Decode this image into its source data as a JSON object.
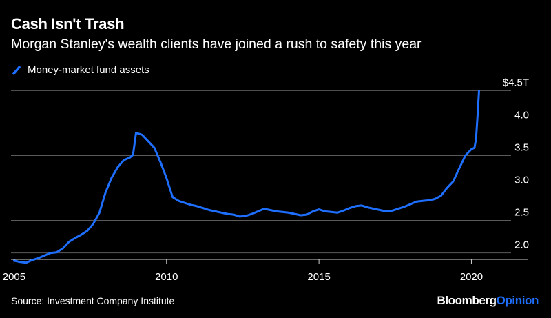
{
  "title": "Cash Isn't Trash",
  "subtitle": "Morgan Stanley's wealth clients have joined a rush to safety this year",
  "legend_label": "Money-market fund assets",
  "source": "Source: Investment Company Institute",
  "brand": {
    "part1": "Bloomberg",
    "part2": "Opinion"
  },
  "colors": {
    "series": "#1f6fff",
    "background": "#000000",
    "grid": "#5a5a5a",
    "text": "#ffffff"
  },
  "chart_data": {
    "type": "line",
    "title": "Cash Isn't Trash",
    "subtitle": "Morgan Stanley's wealth clients have joined a rush to safety this year",
    "xlabel": "",
    "ylabel": "",
    "x_ticks": [
      "2005",
      "2010",
      "2015",
      "2020"
    ],
    "y_ticks": [
      "2.0",
      "2.5",
      "3.0",
      "3.5",
      "4.0",
      "$4.5T"
    ],
    "y_tick_values": [
      2.0,
      2.5,
      3.0,
      3.5,
      4.0,
      4.5
    ],
    "xlim": [
      2004.9,
      2021.3
    ],
    "ylim": [
      1.9,
      4.6
    ],
    "grid": true,
    "legend_position": "top-left",
    "series": [
      {
        "name": "Money-market fund assets",
        "x": [
          2005.0,
          2005.2,
          2005.4,
          2005.6,
          2005.8,
          2006.0,
          2006.2,
          2006.4,
          2006.6,
          2006.8,
          2007.0,
          2007.2,
          2007.4,
          2007.6,
          2007.8,
          2008.0,
          2008.2,
          2008.4,
          2008.6,
          2008.8,
          2008.9,
          2009.0,
          2009.2,
          2009.4,
          2009.6,
          2009.8,
          2010.0,
          2010.2,
          2010.4,
          2010.6,
          2010.8,
          2011.0,
          2011.2,
          2011.4,
          2011.6,
          2011.8,
          2012.0,
          2012.2,
          2012.4,
          2012.6,
          2012.8,
          2013.0,
          2013.2,
          2013.4,
          2013.6,
          2013.8,
          2014.0,
          2014.2,
          2014.4,
          2014.6,
          2014.8,
          2015.0,
          2015.2,
          2015.4,
          2015.6,
          2015.8,
          2016.0,
          2016.2,
          2016.4,
          2016.6,
          2016.8,
          2017.0,
          2017.2,
          2017.4,
          2017.6,
          2017.8,
          2018.0,
          2018.2,
          2018.4,
          2018.6,
          2018.8,
          2019.0,
          2019.2,
          2019.4,
          2019.6,
          2019.8,
          2020.0,
          2020.1,
          2020.15,
          2020.2,
          2020.25
        ],
        "values": [
          1.88,
          1.86,
          1.85,
          1.89,
          1.92,
          1.96,
          2.0,
          2.01,
          2.07,
          2.17,
          2.23,
          2.28,
          2.34,
          2.45,
          2.62,
          2.93,
          3.16,
          3.32,
          3.43,
          3.47,
          3.51,
          3.85,
          3.82,
          3.72,
          3.62,
          3.4,
          3.15,
          2.86,
          2.8,
          2.77,
          2.74,
          2.72,
          2.69,
          2.66,
          2.64,
          2.62,
          2.6,
          2.59,
          2.56,
          2.57,
          2.6,
          2.64,
          2.68,
          2.66,
          2.64,
          2.63,
          2.62,
          2.6,
          2.58,
          2.59,
          2.64,
          2.67,
          2.64,
          2.63,
          2.62,
          2.65,
          2.69,
          2.72,
          2.73,
          2.7,
          2.68,
          2.66,
          2.64,
          2.65,
          2.68,
          2.71,
          2.75,
          2.79,
          2.8,
          2.81,
          2.83,
          2.88,
          3.0,
          3.1,
          3.3,
          3.5,
          3.6,
          3.62,
          3.75,
          4.1,
          4.5
        ]
      }
    ]
  }
}
